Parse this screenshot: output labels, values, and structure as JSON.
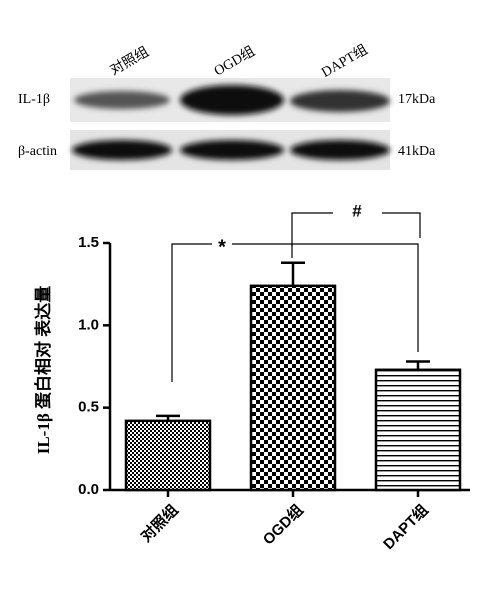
{
  "blot": {
    "lanes": [
      "对照组",
      "OGD组",
      "DAPT组"
    ],
    "rows": [
      {
        "label": "IL-1β",
        "size": "17kDa"
      },
      {
        "label": "β-actin",
        "size": "41kDa"
      }
    ]
  },
  "chart_data": {
    "type": "bar",
    "ylabel": "IL-1β 蛋白相对 表达量",
    "categories": [
      "对照组",
      "OGD组",
      "DAPT组"
    ],
    "values": [
      0.42,
      1.24,
      0.73
    ],
    "errors": [
      0.03,
      0.14,
      0.05
    ],
    "ylim": [
      0,
      1.5
    ],
    "yticks": [
      {
        "value": 0,
        "label": "0.0"
      },
      {
        "value": 0.5,
        "label": "0.5"
      },
      {
        "value": 1,
        "label": "1.0"
      },
      {
        "value": 1.5,
        "label": "1.5"
      }
    ],
    "annotations": [
      "*",
      "#"
    ]
  }
}
